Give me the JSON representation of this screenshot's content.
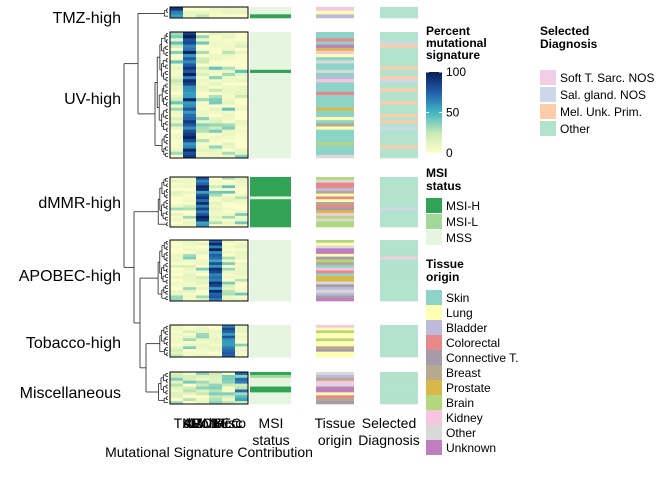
{
  "chart_data": {
    "type": "heatmap",
    "title": "",
    "xlabel": "Mutational Signature Contribution",
    "row_groups": [
      "TMZ-high",
      "UV-high",
      "dMMR-high",
      "APOBEC-high",
      "Tobacco-high",
      "Miscellaneous"
    ],
    "row_counts": [
      3,
      40,
      18,
      22,
      12,
      11
    ],
    "signature_columns": [
      "TMZ",
      "UV",
      "dMMR",
      "APOBEC",
      "Tobacco",
      "Misc"
    ],
    "annotation_columns": [
      "MSI status",
      "Tissue origin",
      "Selected Diagnosis"
    ],
    "color_scale": {
      "title": "Percent mutational signature",
      "range": [
        0,
        100
      ],
      "ticks": [
        0,
        50,
        100
      ],
      "colors": [
        "#ffffcc",
        "#c7e9b4",
        "#41b6c4",
        "#225ea8",
        "#081d58"
      ]
    },
    "msi_status": {
      "title": "MSI status",
      "levels": [
        {
          "label": "MSI-H",
          "color": "#31a354"
        },
        {
          "label": "MSI-L",
          "color": "#a1d99b"
        },
        {
          "label": "MSS",
          "color": "#e5f5e0"
        }
      ]
    },
    "tissue_origin": {
      "title": "Tissue origin",
      "levels": [
        {
          "label": "Skin",
          "color": "#8dd3c7"
        },
        {
          "label": "Lung",
          "color": "#ffffb3"
        },
        {
          "label": "Bladder",
          "color": "#bebada"
        },
        {
          "label": "Colorectal",
          "color": "#e7898b"
        },
        {
          "label": "Connective T.",
          "color": "#a69ba9"
        },
        {
          "label": "Breast",
          "color": "#b7a890"
        },
        {
          "label": "Prostate",
          "color": "#d8b84a"
        },
        {
          "label": "Brain",
          "color": "#b3d77c"
        },
        {
          "label": "Kidney",
          "color": "#f6c6e0"
        },
        {
          "label": "Other",
          "color": "#d9d9d9"
        },
        {
          "label": "Unknown",
          "color": "#bf7fbf"
        }
      ]
    },
    "selected_diagnosis": {
      "title": "Selected Diagnosis",
      "levels": [
        {
          "label": "Soft T. Sarc. NOS",
          "color": "#f2cde6"
        },
        {
          "label": "Sal. gland. NOS",
          "color": "#ccd8ea"
        },
        {
          "label": "Mel. Unk. Prim.",
          "color": "#fdcca8"
        },
        {
          "label": "Other",
          "color": "#b3e2cd"
        }
      ]
    }
  }
}
